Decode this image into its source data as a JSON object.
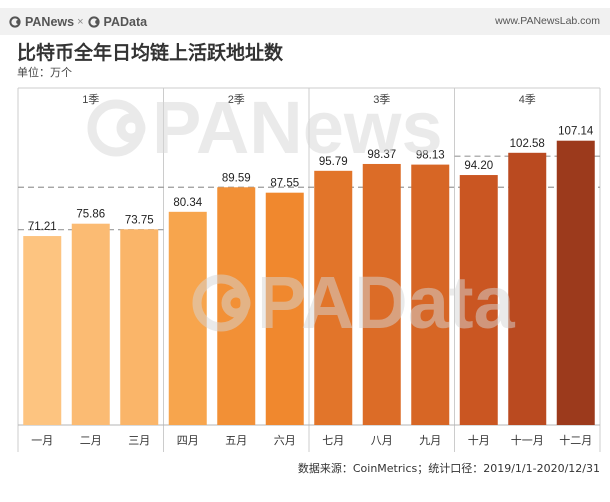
{
  "header": {
    "brand_left": "PANews",
    "separator": "×",
    "brand_right": "PAData",
    "site": "www.PANewsLab.com"
  },
  "watermarks": [
    "PANews",
    "PAData"
  ],
  "footer": {
    "source": "数据来源：CoinMetrics；统计口径：2019/1/1-2020/12/31"
  },
  "colors": {
    "header_band": "#f1f1f1",
    "frame_lines": "#cccccc",
    "reference_line": "#9a9a9a",
    "watermark": "#d6d6d6",
    "text": "#333333"
  },
  "chart_data": {
    "type": "bar",
    "title": "比特币全年日均链上活跃地址数",
    "unit": "单位：万个",
    "categories": [
      "一月",
      "二月",
      "三月",
      "四月",
      "五月",
      "六月",
      "七月",
      "八月",
      "九月",
      "十月",
      "十一月",
      "十二月"
    ],
    "values": [
      71.21,
      75.86,
      73.75,
      80.34,
      89.59,
      87.55,
      95.79,
      98.37,
      98.13,
      94.2,
      102.58,
      107.14
    ],
    "groups": [
      {
        "label": "1季",
        "from": 0,
        "to": 2
      },
      {
        "label": "2季",
        "from": 3,
        "to": 5
      },
      {
        "label": "3季",
        "from": 6,
        "to": 8
      },
      {
        "label": "4季",
        "from": 9,
        "to": 11
      }
    ],
    "colors": [
      "#fdc480",
      "#fbbb73",
      "#fab569",
      "#f7a54d",
      "#f29036",
      "#f0882e",
      "#e2752a",
      "#dc6c27",
      "#d76625",
      "#ca5622",
      "#ba4a20",
      "#9c3a1c"
    ],
    "reference_lines": [
      {
        "value": 73.6,
        "from": 0,
        "to": 2
      },
      {
        "value": 89.6,
        "from": 0,
        "to": 11
      },
      {
        "value": 101.3,
        "from": 9,
        "to": 11
      }
    ],
    "ylim": [
      0,
      127
    ],
    "value_labels": true,
    "grid": false
  }
}
